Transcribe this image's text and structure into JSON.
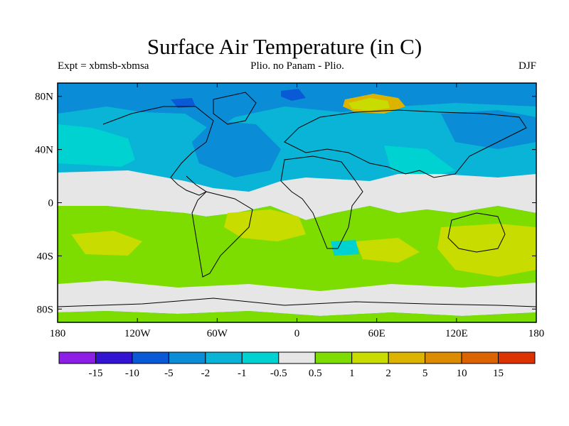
{
  "title": "Surface Air Temperature (in C)",
  "subtitle_left": "Expt = xbmsb-xbmsa",
  "subtitle_center": "Plio. no Panam - Plio.",
  "subtitle_right": "DJF",
  "map_data": {
    "projection": "cylindrical equidistant",
    "lon_range": [
      -180,
      180
    ],
    "lat_range": [
      -90,
      90
    ],
    "lat_ticks": [
      {
        "value": 80,
        "label": "80N"
      },
      {
        "value": 40,
        "label": "40N"
      },
      {
        "value": 0,
        "label": "0"
      },
      {
        "value": -40,
        "label": "40S"
      },
      {
        "value": -80,
        "label": "80S"
      }
    ],
    "lon_ticks": [
      {
        "value": -180,
        "label": "180"
      },
      {
        "value": -120,
        "label": "120W"
      },
      {
        "value": -60,
        "label": "60W"
      },
      {
        "value": 0,
        "label": "0"
      },
      {
        "value": 60,
        "label": "60E"
      },
      {
        "value": 120,
        "label": "120E"
      },
      {
        "value": 180,
        "label": "180"
      }
    ]
  },
  "colorbar": {
    "colors": [
      "#8c1ee6",
      "#3214d2",
      "#0a5ad7",
      "#0a8cd7",
      "#0ab4d7",
      "#00d2d2",
      "#e6e6e6",
      "#7ddc00",
      "#c8dc00",
      "#dcb400",
      "#dc8c00",
      "#dc6400",
      "#dc3200"
    ],
    "labels": [
      "-15",
      "-10",
      "-5",
      "-2",
      "-1",
      "-0.5",
      "0.5",
      "1",
      "2",
      "5",
      "10",
      "15"
    ]
  }
}
